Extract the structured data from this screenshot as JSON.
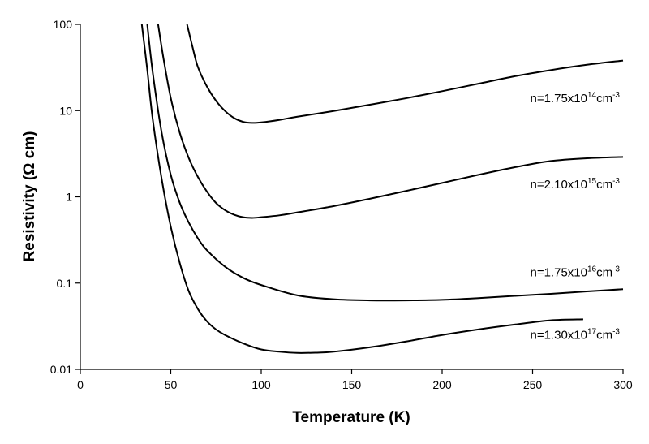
{
  "chart_data": {
    "type": "line",
    "title": "",
    "xlabel": "Temperature (K)",
    "ylabel": "Resistivity (Ω cm)",
    "xlim": [
      0,
      300
    ],
    "ylim": [
      0.01,
      100
    ],
    "y_scale": "log",
    "grid": false,
    "x_ticks": [
      0,
      50,
      100,
      150,
      200,
      250,
      300
    ],
    "y_ticks": [
      0.01,
      0.1,
      1,
      10,
      100
    ],
    "x_tick_labels": [
      "0",
      "50",
      "100",
      "150",
      "200",
      "250",
      "300"
    ],
    "y_tick_labels": [
      "0.01",
      "0.1",
      "1",
      "10",
      "100"
    ],
    "series": [
      {
        "name": "n=1.75x10^14cm^-3",
        "label_base": "n=1.75x10",
        "label_exp": "14",
        "label_unit": "cm",
        "label_unit_exp": "-3",
        "x": [
          59,
          62,
          65,
          70,
          75,
          80,
          85,
          90,
          95,
          100,
          110,
          120,
          140,
          160,
          180,
          200,
          220,
          240,
          260,
          280,
          300
        ],
        "y": [
          100,
          55,
          32,
          19,
          13,
          9.9,
          8.2,
          7.4,
          7.2,
          7.3,
          7.8,
          8.5,
          9.9,
          11.7,
          13.9,
          16.8,
          20.5,
          25.0,
          29.5,
          34.0,
          38.0
        ]
      },
      {
        "name": "n=2.10x10^15cm^-3",
        "label_base": "n=2.10x10",
        "label_exp": "15",
        "label_unit": "cm",
        "label_unit_exp": "-3",
        "x": [
          43,
          46,
          50,
          55,
          60,
          65,
          70,
          75,
          80,
          85,
          90,
          95,
          100,
          110,
          120,
          140,
          160,
          180,
          200,
          220,
          240,
          260,
          280,
          300
        ],
        "y": [
          100,
          40,
          14,
          5.5,
          2.8,
          1.7,
          1.15,
          0.85,
          0.7,
          0.62,
          0.58,
          0.57,
          0.58,
          0.61,
          0.66,
          0.78,
          0.95,
          1.17,
          1.45,
          1.8,
          2.2,
          2.6,
          2.8,
          2.9
        ]
      },
      {
        "name": "n=1.75x10^16cm^-3",
        "label_base": "n=1.75x10",
        "label_exp": "16",
        "label_unit": "cm",
        "label_unit_exp": "-3",
        "x": [
          37,
          40,
          45,
          50,
          55,
          60,
          65,
          70,
          80,
          90,
          100,
          120,
          140,
          160,
          180,
          200,
          220,
          240,
          260,
          280,
          300
        ],
        "y": [
          100,
          28,
          5.5,
          1.8,
          0.85,
          0.5,
          0.33,
          0.24,
          0.155,
          0.115,
          0.095,
          0.072,
          0.065,
          0.063,
          0.063,
          0.064,
          0.067,
          0.071,
          0.075,
          0.08,
          0.085
        ]
      },
      {
        "name": "n=1.30x10^17cm^-3",
        "label_base": "n=1.30x10",
        "label_exp": "17",
        "label_unit": "cm",
        "label_unit_exp": "-3",
        "x": [
          34,
          37,
          40,
          45,
          50,
          55,
          60,
          65,
          70,
          75,
          80,
          90,
          100,
          110,
          120,
          130,
          140,
          160,
          180,
          200,
          220,
          240,
          260,
          278
        ],
        "y": [
          100,
          30,
          8.0,
          1.6,
          0.45,
          0.17,
          0.08,
          0.05,
          0.036,
          0.029,
          0.025,
          0.02,
          0.017,
          0.016,
          0.0155,
          0.0156,
          0.016,
          0.018,
          0.021,
          0.025,
          0.029,
          0.033,
          0.037,
          0.038
        ]
      }
    ]
  }
}
